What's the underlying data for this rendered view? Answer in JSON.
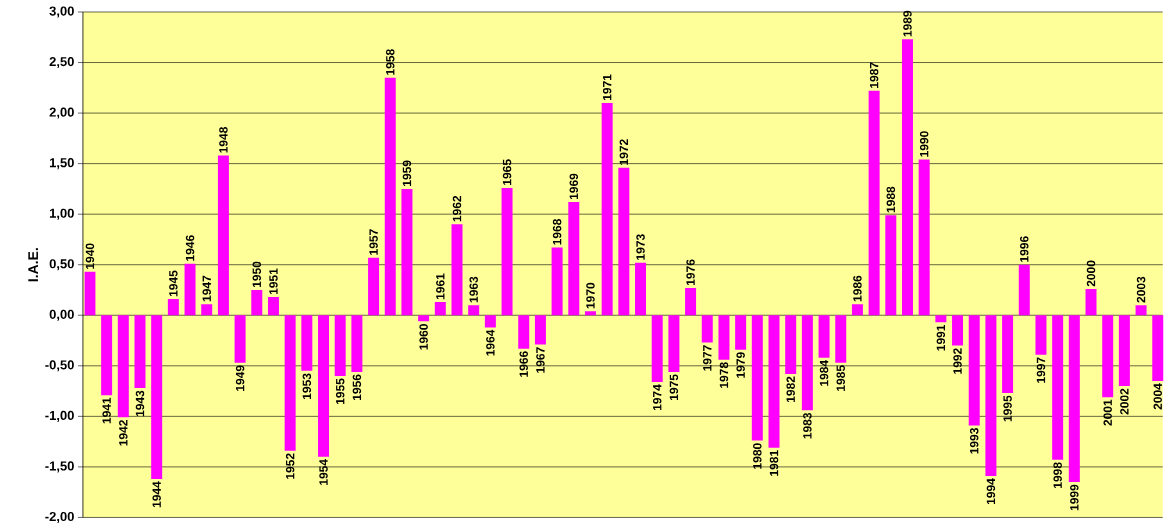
{
  "chart_data": {
    "type": "bar",
    "ylabel": "I.A.E.",
    "categories": [
      "1940",
      "1941",
      "1942",
      "1943",
      "1944",
      "1945",
      "1946",
      "1947",
      "1948",
      "1949",
      "1950",
      "1951",
      "1952",
      "1953",
      "1954",
      "1955",
      "1956",
      "1957",
      "1958",
      "1959",
      "1960",
      "1961",
      "1962",
      "1963",
      "1964",
      "1965",
      "1966",
      "1967",
      "1968",
      "1969",
      "1970",
      "1971",
      "1972",
      "1973",
      "1974",
      "1975",
      "1976",
      "1977",
      "1978",
      "1979",
      "1980",
      "1981",
      "1982",
      "1983",
      "1984",
      "1985",
      "1986",
      "1987",
      "1988",
      "1989",
      "1990",
      "1991",
      "1992",
      "1993",
      "1994",
      "1995",
      "1996",
      "1997",
      "1998",
      "1999",
      "2000",
      "2001",
      "2002",
      "2003",
      "2004"
    ],
    "values": [
      0.43,
      -0.79,
      -1.01,
      -0.72,
      -1.62,
      0.16,
      0.51,
      0.11,
      1.58,
      -0.47,
      0.25,
      0.18,
      -1.34,
      -0.55,
      -1.4,
      -0.6,
      -0.56,
      0.57,
      2.35,
      1.25,
      -0.06,
      0.13,
      0.9,
      0.1,
      -0.12,
      1.26,
      -0.33,
      -0.29,
      0.67,
      1.12,
      0.04,
      2.1,
      1.46,
      0.52,
      -0.66,
      -0.56,
      0.27,
      -0.27,
      -0.44,
      -0.34,
      -1.24,
      -1.31,
      -0.58,
      -0.94,
      -0.42,
      -0.47,
      0.11,
      2.22,
      0.99,
      2.73,
      1.54,
      -0.07,
      -0.3,
      -1.09,
      -1.59,
      -0.77,
      0.5,
      -0.39,
      -1.43,
      -1.65,
      0.26,
      -0.81,
      -0.7,
      0.1,
      -0.65
    ],
    "color": "#ff00ff",
    "ylim": [
      -2,
      3
    ],
    "yticks": [
      {
        "value": -2,
        "label": "-2,00"
      },
      {
        "value": -1.5,
        "label": "-1,50"
      },
      {
        "value": -1,
        "label": "-1,00"
      },
      {
        "value": -0.5,
        "label": "-0,50"
      },
      {
        "value": 0,
        "label": "0,00"
      },
      {
        "value": 0.5,
        "label": "0,50"
      },
      {
        "value": 1,
        "label": "1,00"
      },
      {
        "value": 1.5,
        "label": "1,50"
      },
      {
        "value": 2,
        "label": "2,00"
      },
      {
        "value": 2.5,
        "label": "2,50"
      },
      {
        "value": 3,
        "label": "3,00"
      }
    ],
    "grid": "y"
  }
}
